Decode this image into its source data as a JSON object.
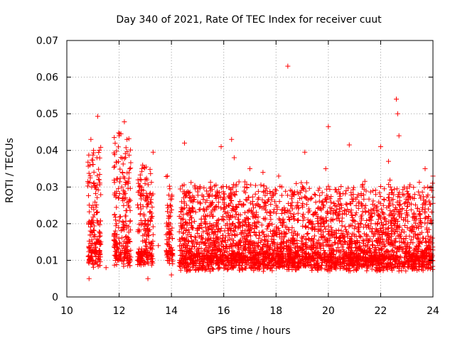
{
  "chart_data": {
    "type": "scatter",
    "title": "Day 340 of 2021, Rate Of TEC Index for receiver cuut",
    "xlabel": "GPS time / hours",
    "ylabel": "ROTI / TECUs",
    "xlim": [
      10,
      24
    ],
    "ylim": [
      0,
      0.07
    ],
    "xticks": [
      10,
      12,
      14,
      16,
      18,
      20,
      22,
      24
    ],
    "yticks": [
      0,
      0.01,
      0.02,
      0.03,
      0.04,
      0.05,
      0.06,
      0.07
    ],
    "xtick_labels": [
      "10",
      "12",
      "14",
      "16",
      "18",
      "20",
      "22",
      "24"
    ],
    "ytick_labels": [
      "0",
      "0.01",
      "0.02",
      "0.03",
      "0.04",
      "0.05",
      "0.06",
      "0.07"
    ],
    "grid": true,
    "marker": "+",
    "marker_color": "#ff0000",
    "series": [
      {
        "name": "ROTI",
        "points": [
          [
            10.85,
            0.005
          ],
          [
            10.9,
            0.018
          ],
          [
            10.92,
            0.043
          ],
          [
            10.95,
            0.03
          ],
          [
            11.0,
            0.025
          ],
          [
            11.05,
            0.012
          ],
          [
            11.1,
            0.03
          ],
          [
            11.15,
            0.038
          ],
          [
            11.18,
            0.0493
          ],
          [
            11.2,
            0.02
          ],
          [
            11.3,
            0.015
          ],
          [
            11.5,
            0.008
          ],
          [
            11.9,
            0.02
          ],
          [
            12.0,
            0.044
          ],
          [
            12.05,
            0.012
          ],
          [
            12.1,
            0.03
          ],
          [
            12.2,
            0.0478
          ],
          [
            12.3,
            0.043
          ],
          [
            12.35,
            0.025
          ],
          [
            12.4,
            0.01
          ],
          [
            12.7,
            0.01
          ],
          [
            12.8,
            0.03
          ],
          [
            12.9,
            0.036
          ],
          [
            13.0,
            0.02
          ],
          [
            13.1,
            0.005
          ],
          [
            13.2,
            0.026
          ],
          [
            13.3,
            0.0395
          ],
          [
            13.5,
            0.014
          ],
          [
            13.85,
            0.033
          ],
          [
            13.95,
            0.025
          ],
          [
            14.0,
            0.006
          ],
          [
            14.5,
            0.042
          ],
          [
            14.6,
            0.02
          ],
          [
            14.9,
            0.03
          ],
          [
            15.0,
            0.008
          ],
          [
            15.3,
            0.022
          ],
          [
            15.5,
            0.03
          ],
          [
            15.9,
            0.041
          ],
          [
            16.0,
            0.01
          ],
          [
            16.3,
            0.043
          ],
          [
            16.4,
            0.038
          ],
          [
            16.6,
            0.015
          ],
          [
            16.8,
            0.03
          ],
          [
            17.0,
            0.035
          ],
          [
            17.2,
            0.02
          ],
          [
            17.5,
            0.034
          ],
          [
            17.8,
            0.008
          ],
          [
            18.0,
            0.025
          ],
          [
            18.1,
            0.033
          ],
          [
            18.3,
            0.015
          ],
          [
            18.45,
            0.063
          ],
          [
            18.6,
            0.01
          ],
          [
            19.0,
            0.025
          ],
          [
            19.1,
            0.0395
          ],
          [
            19.4,
            0.012
          ],
          [
            19.6,
            0.02
          ],
          [
            19.9,
            0.035
          ],
          [
            20.0,
            0.0465
          ],
          [
            20.1,
            0.01
          ],
          [
            20.5,
            0.025
          ],
          [
            20.8,
            0.0415
          ],
          [
            21.0,
            0.015
          ],
          [
            21.3,
            0.03
          ],
          [
            21.5,
            0.012
          ],
          [
            21.8,
            0.02
          ],
          [
            22.0,
            0.041
          ],
          [
            22.1,
            0.008
          ],
          [
            22.3,
            0.037
          ],
          [
            22.5,
            0.02
          ],
          [
            22.6,
            0.054
          ],
          [
            22.65,
            0.05
          ],
          [
            22.7,
            0.044
          ],
          [
            22.9,
            0.03
          ],
          [
            23.0,
            0.012
          ],
          [
            23.3,
            0.028
          ],
          [
            23.5,
            0.015
          ],
          [
            23.7,
            0.035
          ],
          [
            23.8,
            0.03
          ],
          [
            23.9,
            0.01
          ],
          [
            24.0,
            0.033
          ]
        ],
        "dense_clusters": [
          {
            "x_start": 10.8,
            "x_end": 11.3,
            "y_min": 0.004,
            "y_max": 0.04
          },
          {
            "x_start": 11.8,
            "x_end": 12.45,
            "y_min": 0.004,
            "y_max": 0.044
          },
          {
            "x_start": 12.7,
            "x_end": 13.3,
            "y_min": 0.004,
            "y_max": 0.036
          },
          {
            "x_start": 13.8,
            "x_end": 14.05,
            "y_min": 0.005,
            "y_max": 0.032
          },
          {
            "x_start": 14.3,
            "x_end": 24.0,
            "y_min": 0.003,
            "y_max": 0.03
          }
        ]
      }
    ]
  }
}
